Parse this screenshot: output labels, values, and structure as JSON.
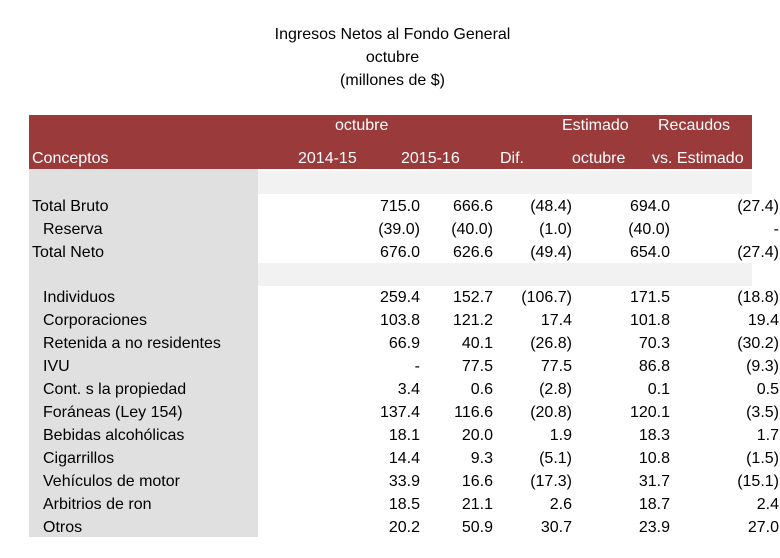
{
  "title": {
    "line1": "Ingresos Netos al Fondo General",
    "line2": "octubre",
    "line3": "(millones de $)"
  },
  "header": {
    "group_octubre": "octubre",
    "group_estimado": "Estimado",
    "group_recaudos": "Recaudos",
    "conceptos": "Conceptos",
    "col_2014": "2014-15",
    "col_2015": "2015-16",
    "col_dif": "Dif.",
    "col_est_octubre": "octubre",
    "col_vs_estimado": "vs. Estimado"
  },
  "colors": {
    "header_band": "#9a3a3a",
    "label_column": "#e0e0e0"
  },
  "rows": [
    {
      "label": "Total Bruto",
      "v2014": "715.0",
      "v2015": "666.6",
      "dif": "(48.4)",
      "est": "694.0",
      "vs": "(27.4)"
    },
    {
      "label": "Reserva",
      "v2014": "(39.0)",
      "v2015": "(40.0)",
      "dif": "(1.0)",
      "est": "(40.0)",
      "vs": "-"
    },
    {
      "label": "Total Neto",
      "v2014": "676.0",
      "v2015": "626.6",
      "dif": "(49.4)",
      "est": "654.0",
      "vs": "(27.4)"
    },
    {
      "label": "Individuos",
      "v2014": "259.4",
      "v2015": "152.7",
      "dif": "(106.7)",
      "est": "171.5",
      "vs": "(18.8)"
    },
    {
      "label": "Corporaciones",
      "v2014": "103.8",
      "v2015": "121.2",
      "dif": "17.4",
      "est": "101.8",
      "vs": "19.4"
    },
    {
      "label": "Retenida a no residentes",
      "v2014": "66.9",
      "v2015": "40.1",
      "dif": "(26.8)",
      "est": "70.3",
      "vs": "(30.2)"
    },
    {
      "label": "IVU",
      "v2014": "-",
      "v2015": "77.5",
      "dif": "77.5",
      "est": "86.8",
      "vs": "(9.3)"
    },
    {
      "label": "Cont. s la propiedad",
      "v2014": "3.4",
      "v2015": "0.6",
      "dif": "(2.8)",
      "est": "0.1",
      "vs": "0.5"
    },
    {
      "label": "Foráneas (Ley 154)",
      "v2014": "137.4",
      "v2015": "116.6",
      "dif": "(20.8)",
      "est": "120.1",
      "vs": "(3.5)"
    },
    {
      "label": "Bebidas alcohólicas",
      "v2014": "18.1",
      "v2015": "20.0",
      "dif": "1.9",
      "est": "18.3",
      "vs": "1.7"
    },
    {
      "label": "Cigarrillos",
      "v2014": "14.4",
      "v2015": "9.3",
      "dif": "(5.1)",
      "est": "10.8",
      "vs": "(1.5)"
    },
    {
      "label": "Vehículos de motor",
      "v2014": "33.9",
      "v2015": "16.6",
      "dif": "(17.3)",
      "est": "31.7",
      "vs": "(15.1)"
    },
    {
      "label": "Arbitrios de ron",
      "v2014": "18.5",
      "v2015": "21.1",
      "dif": "2.6",
      "est": "18.7",
      "vs": "2.4"
    },
    {
      "label": "Otros",
      "v2014": "20.2",
      "v2015": "50.9",
      "dif": "30.7",
      "est": "23.9",
      "vs": "27.0"
    }
  ]
}
